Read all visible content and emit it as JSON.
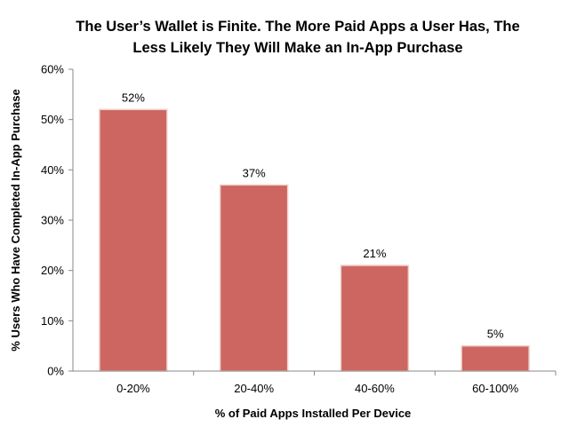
{
  "chart_data": {
    "type": "bar",
    "title_lines": [
      "The User’s Wallet is Finite. The More Paid Apps a User Has, The",
      "Less Likely They Will Make an In-App Purchase"
    ],
    "categories": [
      "0-20%",
      "20-40%",
      "40-60%",
      "60-100%"
    ],
    "values": [
      52,
      37,
      21,
      5
    ],
    "data_labels": [
      "52%",
      "37%",
      "21%",
      "5%"
    ],
    "xlabel": "% of Paid Apps Installed Per Device",
    "ylabel": "% Users Who Have Completed In-App Purchase",
    "ylim": [
      0,
      60
    ],
    "yticks": [
      0,
      10,
      20,
      30,
      40,
      50,
      60
    ],
    "ytick_labels": [
      "0%",
      "10%",
      "20%",
      "30%",
      "40%",
      "50%",
      "60%"
    ],
    "bar_color": "#cd6660",
    "grid": false,
    "legend": "none"
  }
}
